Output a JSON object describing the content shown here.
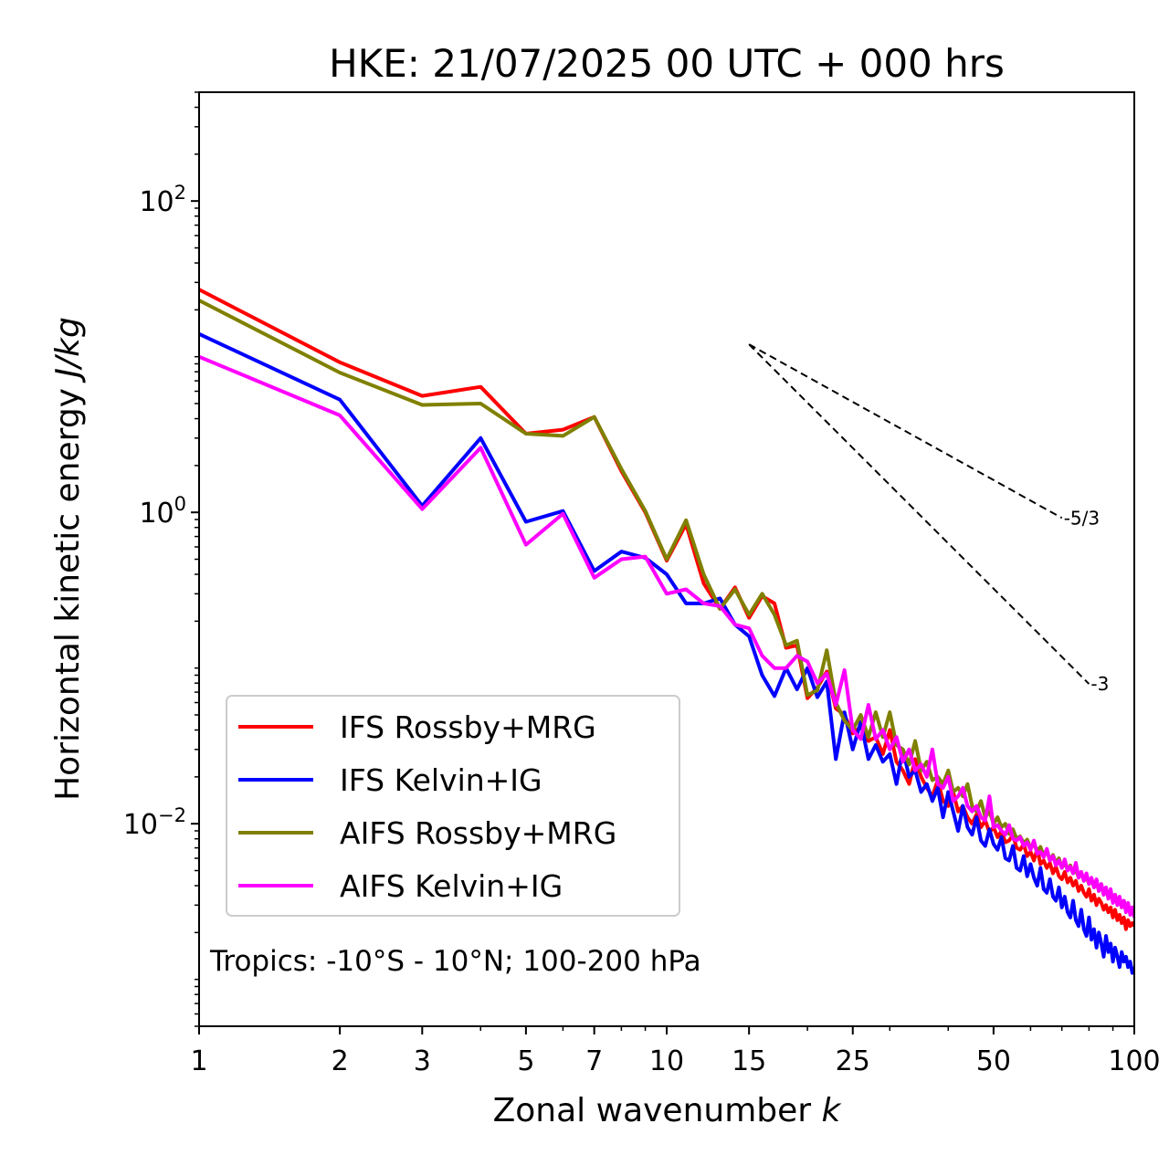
{
  "chart_data": {
    "type": "line",
    "title": "HKE: 21/07/2025 00 UTC + 000 hrs",
    "xlabel": "Zonal wavenumber",
    "xlabel_italic": "k",
    "ylabel": "Horizontal kinetic energy",
    "ylabel_italic": "J/kg",
    "xscale": "log",
    "yscale": "log",
    "xlim": [
      1,
      100
    ],
    "ylim": [
      0.0005,
      500
    ],
    "grid": false,
    "x_ticks": [
      1,
      2,
      3,
      5,
      7,
      10,
      15,
      25,
      50,
      100
    ],
    "x_tick_labels": [
      "1",
      "2",
      "3",
      "5",
      "7",
      "10",
      "15",
      "25",
      "50",
      "100"
    ],
    "y_ticks": [
      0.01,
      1,
      100
    ],
    "y_tick_labels": [
      {
        "base": "10",
        "exp": "−2"
      },
      {
        "base": "10",
        "exp": "0"
      },
      {
        "base": "10",
        "exp": "2"
      }
    ],
    "legend_position": "lower-left",
    "annotation": "Tropics: -10°S - 10°N; 100-200 hPa",
    "reference_slopes": [
      {
        "label": "-5/3",
        "slope": -1.6667,
        "k_start": 15,
        "k_end": 70,
        "e_start": 12
      },
      {
        "label": "-3",
        "slope": -3,
        "k_start": 15,
        "k_end": 80,
        "e_start": 12
      }
    ],
    "series": [
      {
        "name": "IFS Rossby+MRG",
        "color": "#ff0000",
        "k": [
          1,
          2,
          3,
          4,
          5,
          6,
          7,
          8,
          9,
          10,
          11,
          12,
          13,
          14,
          15,
          16,
          17,
          18,
          19,
          20,
          21,
          22,
          23,
          24,
          25,
          26,
          27,
          28,
          29,
          30,
          31,
          32,
          33,
          34,
          35,
          36,
          37,
          38,
          39,
          40,
          41,
          42,
          43,
          44,
          45,
          46,
          47,
          48,
          49,
          50,
          51,
          52,
          53,
          54,
          55,
          56,
          57,
          58,
          59,
          60,
          61,
          62,
          63,
          64,
          65,
          66,
          67,
          68,
          69,
          70,
          71,
          72,
          73,
          74,
          75,
          76,
          77,
          78,
          79,
          80,
          81,
          82,
          83,
          84,
          85,
          86,
          87,
          88,
          89,
          90,
          91,
          92,
          93,
          94,
          95,
          96,
          97,
          98,
          99,
          100
        ],
        "values": [
          27,
          9.2,
          5.6,
          6.4,
          3.2,
          3.4,
          4.1,
          1.84,
          1.0,
          0.49,
          0.84,
          0.35,
          0.24,
          0.33,
          0.21,
          0.29,
          0.26,
          0.135,
          0.14,
          0.064,
          0.075,
          0.095,
          0.055,
          0.05,
          0.038,
          0.042,
          0.034,
          0.036,
          0.028,
          0.04,
          0.025,
          0.022,
          0.018,
          0.026,
          0.02,
          0.017,
          0.015,
          0.019,
          0.014,
          0.013,
          0.016,
          0.012,
          0.013,
          0.011,
          0.01,
          0.0115,
          0.0095,
          0.0105,
          0.0088,
          0.0095,
          0.0082,
          0.009,
          0.0076,
          0.0078,
          0.0085,
          0.007,
          0.0068,
          0.0074,
          0.0062,
          0.0066,
          0.0058,
          0.0069,
          0.0055,
          0.0058,
          0.0052,
          0.0056,
          0.0048,
          0.0053,
          0.0046,
          0.0044,
          0.0049,
          0.0042,
          0.0045,
          0.004,
          0.0043,
          0.0037,
          0.004,
          0.0036,
          0.0034,
          0.0038,
          0.0032,
          0.0035,
          0.003,
          0.0033,
          0.0031,
          0.0028,
          0.003,
          0.0027,
          0.0029,
          0.0025,
          0.0028,
          0.0024,
          0.0026,
          0.0023,
          0.0025,
          0.0021,
          0.0024,
          0.0022,
          0.0023,
          0.0022
        ]
      },
      {
        "name": "IFS Kelvin+IG",
        "color": "#0000ff",
        "k": [
          1,
          2,
          3,
          4,
          5,
          6,
          7,
          8,
          9,
          10,
          11,
          12,
          13,
          14,
          15,
          16,
          17,
          18,
          19,
          20,
          21,
          22,
          23,
          24,
          25,
          26,
          27,
          28,
          29,
          30,
          31,
          32,
          33,
          34,
          35,
          36,
          37,
          38,
          39,
          40,
          41,
          42,
          43,
          44,
          45,
          46,
          47,
          48,
          49,
          50,
          51,
          52,
          53,
          54,
          55,
          56,
          57,
          58,
          59,
          60,
          61,
          62,
          63,
          64,
          65,
          66,
          67,
          68,
          69,
          70,
          71,
          72,
          73,
          74,
          75,
          76,
          77,
          78,
          79,
          80,
          81,
          82,
          83,
          84,
          85,
          86,
          87,
          88,
          89,
          90,
          91,
          92,
          93,
          94,
          95,
          96,
          97,
          98,
          99,
          100
        ],
        "values": [
          14,
          5.3,
          1.1,
          3.0,
          0.87,
          1.02,
          0.42,
          0.56,
          0.51,
          0.4,
          0.26,
          0.26,
          0.28,
          0.19,
          0.16,
          0.09,
          0.066,
          0.1,
          0.073,
          0.1,
          0.065,
          0.082,
          0.026,
          0.052,
          0.03,
          0.045,
          0.026,
          0.032,
          0.025,
          0.028,
          0.018,
          0.03,
          0.02,
          0.022,
          0.016,
          0.018,
          0.014,
          0.017,
          0.011,
          0.016,
          0.012,
          0.009,
          0.013,
          0.0095,
          0.0085,
          0.011,
          0.0078,
          0.0072,
          0.0092,
          0.0074,
          0.0068,
          0.0082,
          0.006,
          0.0058,
          0.0072,
          0.0052,
          0.005,
          0.0062,
          0.0046,
          0.0055,
          0.0045,
          0.004,
          0.0052,
          0.0038,
          0.0036,
          0.0044,
          0.0034,
          0.0032,
          0.0039,
          0.0029,
          0.0034,
          0.0027,
          0.0025,
          0.0032,
          0.0024,
          0.0022,
          0.0028,
          0.0021,
          0.0019,
          0.0025,
          0.0018,
          0.0021,
          0.0016,
          0.002,
          0.0017,
          0.0014,
          0.0019,
          0.0015,
          0.0017,
          0.0013,
          0.0016,
          0.0014,
          0.0012,
          0.0015,
          0.0013,
          0.0014,
          0.0012,
          0.0013,
          0.0011,
          0.0012
        ]
      },
      {
        "name": "AIFS Rossby+MRG",
        "color": "#808000",
        "k": [
          1,
          2,
          3,
          4,
          5,
          6,
          7,
          8,
          9,
          10,
          11,
          12,
          13,
          14,
          15,
          16,
          17,
          18,
          19,
          20,
          21,
          22,
          23,
          24,
          25,
          26,
          27,
          28,
          29,
          30,
          31,
          32,
          33,
          34,
          35,
          36,
          37,
          38,
          39,
          40,
          41,
          42,
          43,
          44,
          45,
          46,
          47,
          48,
          49,
          50,
          51,
          52,
          53,
          54,
          55,
          56,
          57,
          58,
          59,
          60,
          61,
          62,
          63,
          64,
          65,
          66,
          67,
          68,
          69,
          70,
          71,
          72,
          73,
          74,
          75,
          76,
          77,
          78,
          79,
          80,
          81,
          82,
          83,
          84,
          85,
          86,
          87,
          88,
          89,
          90,
          91,
          92,
          93,
          94,
          95,
          96,
          97,
          98,
          99,
          100
        ],
        "values": [
          23,
          7.9,
          4.9,
          5.0,
          3.2,
          3.1,
          4.1,
          1.9,
          1.02,
          0.5,
          0.89,
          0.4,
          0.24,
          0.32,
          0.22,
          0.3,
          0.22,
          0.14,
          0.15,
          0.067,
          0.072,
          0.13,
          0.06,
          0.046,
          0.04,
          0.05,
          0.036,
          0.052,
          0.036,
          0.052,
          0.032,
          0.03,
          0.024,
          0.034,
          0.022,
          0.025,
          0.019,
          0.02,
          0.018,
          0.022,
          0.016,
          0.017,
          0.015,
          0.018,
          0.013,
          0.012,
          0.014,
          0.011,
          0.012,
          0.01,
          0.011,
          0.0095,
          0.01,
          0.0086,
          0.0092,
          0.008,
          0.0083,
          0.0075,
          0.0079,
          0.007,
          0.0074,
          0.0066,
          0.0071,
          0.0062,
          0.0067,
          0.0058,
          0.0063,
          0.0056,
          0.006,
          0.0052,
          0.0057,
          0.005,
          0.0054,
          0.0048,
          0.0051,
          0.0045,
          0.0049,
          0.0043,
          0.0046,
          0.0041,
          0.0044,
          0.0039,
          0.0042,
          0.0037,
          0.0041,
          0.0035,
          0.0038,
          0.0034,
          0.0036,
          0.0032,
          0.0035,
          0.0031,
          0.0033,
          0.0029,
          0.0032,
          0.0028,
          0.003,
          0.0027,
          0.0029,
          0.0027
        ]
      },
      {
        "name": "AIFS Kelvin+IG",
        "color": "#ff00ff",
        "k": [
          1,
          2,
          3,
          4,
          5,
          6,
          7,
          8,
          9,
          10,
          11,
          12,
          13,
          14,
          15,
          16,
          17,
          18,
          19,
          20,
          21,
          22,
          23,
          24,
          25,
          26,
          27,
          28,
          29,
          30,
          31,
          32,
          33,
          34,
          35,
          36,
          37,
          38,
          39,
          40,
          41,
          42,
          43,
          44,
          45,
          46,
          47,
          48,
          49,
          50,
          51,
          52,
          53,
          54,
          55,
          56,
          57,
          58,
          59,
          60,
          61,
          62,
          63,
          64,
          65,
          66,
          67,
          68,
          69,
          70,
          71,
          72,
          73,
          74,
          75,
          76,
          77,
          78,
          79,
          80,
          81,
          82,
          83,
          84,
          85,
          86,
          87,
          88,
          89,
          90,
          91,
          92,
          93,
          94,
          95,
          96,
          97,
          98,
          99,
          100
        ],
        "values": [
          10,
          4.2,
          1.05,
          2.6,
          0.62,
          0.98,
          0.38,
          0.5,
          0.52,
          0.3,
          0.32,
          0.26,
          0.25,
          0.19,
          0.18,
          0.12,
          0.1,
          0.1,
          0.12,
          0.11,
          0.08,
          0.092,
          0.058,
          0.097,
          0.04,
          0.035,
          0.058,
          0.035,
          0.04,
          0.03,
          0.036,
          0.025,
          0.03,
          0.022,
          0.024,
          0.02,
          0.03,
          0.018,
          0.017,
          0.02,
          0.014,
          0.015,
          0.017,
          0.013,
          0.012,
          0.013,
          0.011,
          0.0105,
          0.015,
          0.0095,
          0.0098,
          0.009,
          0.0085,
          0.0098,
          0.008,
          0.0078,
          0.0082,
          0.0072,
          0.0076,
          0.0068,
          0.0078,
          0.0064,
          0.0066,
          0.0061,
          0.0069,
          0.0058,
          0.0062,
          0.0054,
          0.0058,
          0.0052,
          0.0059,
          0.005,
          0.0053,
          0.0048,
          0.0056,
          0.0045,
          0.0049,
          0.0043,
          0.0048,
          0.0041,
          0.0045,
          0.0039,
          0.0044,
          0.0037,
          0.0041,
          0.0035,
          0.0039,
          0.0033,
          0.0038,
          0.0031,
          0.0035,
          0.003,
          0.0034,
          0.0029,
          0.0032,
          0.0027,
          0.0031,
          0.0026,
          0.0029,
          0.0025
        ]
      }
    ]
  }
}
